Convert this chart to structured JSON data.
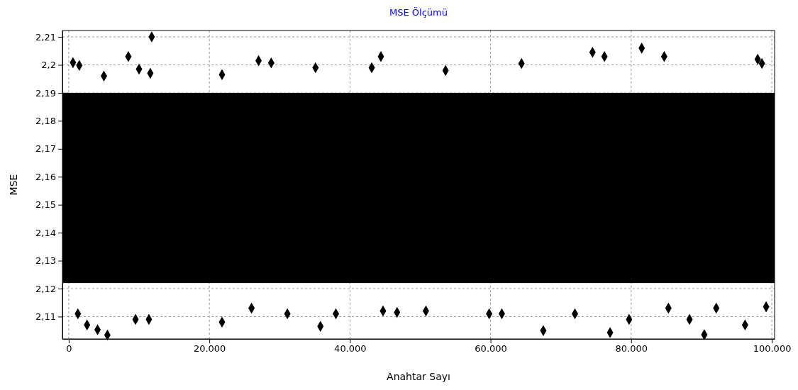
{
  "chart_data": {
    "type": "scatter",
    "title": "MSE Ölçümü",
    "xlabel": "Anahtar Sayı",
    "ylabel": "MSE",
    "xlim": [
      -900,
      100400
    ],
    "ylim": [
      2.102,
      2.2123
    ],
    "xticks": [
      {
        "value": 0,
        "label": "0"
      },
      {
        "value": 20000,
        "label": "20.000"
      },
      {
        "value": 40000,
        "label": "40.000"
      },
      {
        "value": 60000,
        "label": "60.000"
      },
      {
        "value": 80000,
        "label": "80.000"
      },
      {
        "value": 100000,
        "label": "100.000"
      }
    ],
    "yticks": [
      {
        "value": 2.11,
        "label": "2,11"
      },
      {
        "value": 2.12,
        "label": "2,12"
      },
      {
        "value": 2.13,
        "label": "2,13"
      },
      {
        "value": 2.14,
        "label": "2,14"
      },
      {
        "value": 2.15,
        "label": "2,15"
      },
      {
        "value": 2.16,
        "label": "2,16"
      },
      {
        "value": 2.17,
        "label": "2,17"
      },
      {
        "value": 2.18,
        "label": "2,18"
      },
      {
        "value": 2.19,
        "label": "2,19"
      },
      {
        "value": 2.2,
        "label": "2,2"
      },
      {
        "value": 2.21,
        "label": "2,21"
      }
    ],
    "grid": true,
    "marker": "diamond",
    "bands": [
      {
        "axis": "y",
        "from": 2.122,
        "to": 2.19,
        "color": "#000000"
      }
    ],
    "series": [
      {
        "color": "#000000",
        "x": [
          11800,
          600,
          1500,
          8480,
          10000,
          11600,
          27000,
          28800,
          44400,
          43100,
          53600,
          64400,
          74500,
          76200,
          81500,
          84700,
          98000,
          98600,
          35100,
          21800,
          5000,
          5500,
          2600,
          1300,
          4100,
          9500,
          11400,
          21800,
          31100,
          35800,
          38000,
          44700,
          46700,
          50800,
          59800,
          61600,
          67500,
          72000,
          77000,
          79700,
          88300,
          90400,
          92100,
          96200,
          99200,
          85300,
          26000
        ],
        "values": [
          2.21,
          2.2008,
          2.1998,
          2.203,
          2.1985,
          2.197,
          2.2015,
          2.2007,
          2.203,
          2.199,
          2.198,
          2.2005,
          2.2045,
          2.203,
          2.206,
          2.203,
          2.202,
          2.2005,
          2.199,
          2.1965,
          2.196,
          2.1034,
          2.107,
          2.111,
          2.1053,
          2.109,
          2.109,
          2.108,
          2.111,
          2.1065,
          2.111,
          2.112,
          2.1115,
          2.112,
          2.111,
          2.111,
          2.105,
          2.111,
          2.1043,
          2.109,
          2.109,
          2.1035,
          2.113,
          2.107,
          2.1135,
          2.113,
          2.113
        ]
      }
    ]
  }
}
